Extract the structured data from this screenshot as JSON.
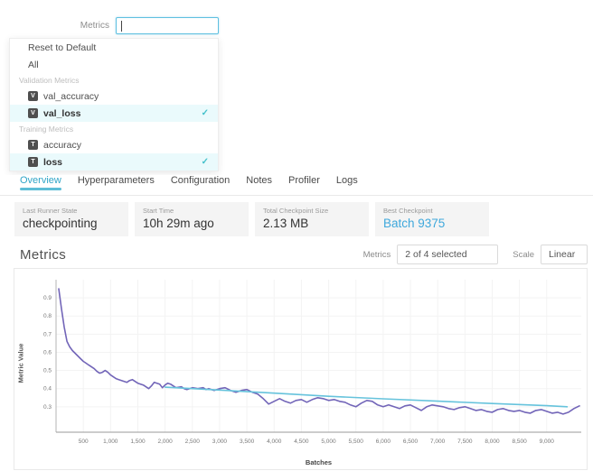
{
  "dropdown": {
    "label": "Metrics",
    "input_value": "",
    "items": [
      {
        "label": "Reset to Default",
        "type": "action"
      },
      {
        "label": "All",
        "type": "action"
      },
      {
        "label": "Validation Metrics",
        "type": "section"
      },
      {
        "label": "val_accuracy",
        "type": "item",
        "badge": "V",
        "selected": false
      },
      {
        "label": "val_loss",
        "type": "item",
        "badge": "V",
        "selected": true
      },
      {
        "label": "Training Metrics",
        "type": "section"
      },
      {
        "label": "accuracy",
        "type": "item",
        "badge": "T",
        "selected": false
      },
      {
        "label": "loss",
        "type": "item",
        "badge": "T",
        "selected": true
      }
    ],
    "check_glyph": "✓"
  },
  "tabs": {
    "items": [
      "Overview",
      "Hyperparameters",
      "Configuration",
      "Notes",
      "Profiler",
      "Logs"
    ],
    "active": "Overview"
  },
  "cards": [
    {
      "label": "Last Runner State",
      "value": "checkpointing",
      "link": false
    },
    {
      "label": "Start Time",
      "value": "10h 29m ago",
      "link": false
    },
    {
      "label": "Total Checkpoint Size",
      "value": "2.13 MB",
      "link": false
    },
    {
      "label": "Best Checkpoint",
      "value": "Batch 9375",
      "link": true
    }
  ],
  "metrics_section": {
    "title": "Metrics",
    "selector_label": "Metrics",
    "selector_value": "2 of 4 selected",
    "scale_label": "Scale",
    "scale_value": "Linear"
  },
  "colors": {
    "accent_teal": "#2fa4c7",
    "link_blue": "#3fa8dc",
    "check_teal": "#45c1cb",
    "grid": "#f3f3f3",
    "axis": "#b5b5b5",
    "tick_text": "#777777"
  },
  "chart_data": {
    "type": "line",
    "title": "Metrics",
    "xlabel": "Batches",
    "ylabel": "Metric Value",
    "xlim": [
      0,
      9700
    ],
    "ylim": [
      0.16,
      1.0
    ],
    "grid": true,
    "x_ticks": [
      500,
      1000,
      1500,
      2000,
      2500,
      3000,
      3500,
      4000,
      4500,
      5000,
      5500,
      6000,
      6500,
      7000,
      7500,
      8000,
      8500,
      9000
    ],
    "x_tick_labels": [
      "500",
      "1,000",
      "1,500",
      "2,000",
      "2,500",
      "3,000",
      "3,500",
      "4,000",
      "4,500",
      "5,000",
      "5,500",
      "6,000",
      "6,500",
      "7,000",
      "7,500",
      "8,000",
      "8,500",
      "9,000"
    ],
    "y_ticks": [
      0.3,
      0.4,
      0.5,
      0.6,
      0.7,
      0.8,
      0.9
    ],
    "series": [
      {
        "name": "loss",
        "color": "#7265b8",
        "x": [
          50,
          100,
          150,
          200,
          250,
          300,
          350,
          400,
          450,
          500,
          550,
          600,
          650,
          700,
          750,
          800,
          850,
          900,
          950,
          1000,
          1050,
          1100,
          1150,
          1200,
          1250,
          1300,
          1350,
          1400,
          1450,
          1500,
          1600,
          1700,
          1750,
          1800,
          1900,
          1950,
          2000,
          2050,
          2100,
          2200,
          2300,
          2350,
          2400,
          2500,
          2600,
          2700,
          2750,
          2800,
          2900,
          3000,
          3100,
          3200,
          3300,
          3400,
          3500,
          3600,
          3700,
          3800,
          3900,
          4000,
          4100,
          4200,
          4300,
          4400,
          4500,
          4600,
          4700,
          4800,
          4900,
          5000,
          5100,
          5200,
          5300,
          5400,
          5500,
          5600,
          5700,
          5800,
          5900,
          6000,
          6100,
          6200,
          6300,
          6400,
          6500,
          6600,
          6700,
          6800,
          6900,
          7000,
          7100,
          7200,
          7300,
          7400,
          7500,
          7600,
          7700,
          7800,
          7900,
          8000,
          8100,
          8200,
          8300,
          8400,
          8500,
          8600,
          8700,
          8800,
          8900,
          9000,
          9100,
          9200,
          9300,
          9400,
          9500,
          9600
        ],
        "y": [
          0.95,
          0.84,
          0.74,
          0.66,
          0.63,
          0.61,
          0.595,
          0.58,
          0.565,
          0.55,
          0.54,
          0.53,
          0.52,
          0.51,
          0.495,
          0.485,
          0.49,
          0.5,
          0.49,
          0.475,
          0.465,
          0.455,
          0.45,
          0.445,
          0.44,
          0.435,
          0.445,
          0.45,
          0.44,
          0.43,
          0.42,
          0.4,
          0.415,
          0.435,
          0.425,
          0.405,
          0.42,
          0.43,
          0.425,
          0.405,
          0.41,
          0.4,
          0.395,
          0.405,
          0.4,
          0.405,
          0.395,
          0.4,
          0.39,
          0.4,
          0.405,
          0.39,
          0.38,
          0.39,
          0.395,
          0.38,
          0.37,
          0.345,
          0.315,
          0.33,
          0.345,
          0.33,
          0.32,
          0.335,
          0.34,
          0.325,
          0.34,
          0.35,
          0.345,
          0.335,
          0.34,
          0.33,
          0.325,
          0.31,
          0.3,
          0.32,
          0.335,
          0.33,
          0.31,
          0.3,
          0.31,
          0.3,
          0.29,
          0.305,
          0.31,
          0.295,
          0.28,
          0.3,
          0.31,
          0.305,
          0.3,
          0.29,
          0.285,
          0.295,
          0.3,
          0.29,
          0.28,
          0.285,
          0.275,
          0.27,
          0.285,
          0.29,
          0.28,
          0.275,
          0.28,
          0.27,
          0.265,
          0.28,
          0.285,
          0.275,
          0.265,
          0.27,
          0.26,
          0.27,
          0.29,
          0.305
        ]
      },
      {
        "name": "val_loss",
        "color": "#66c3dc",
        "x": [
          2000,
          3000,
          4000,
          5000,
          6000,
          7000,
          8000,
          9000,
          9375
        ],
        "y": [
          0.408,
          0.392,
          0.375,
          0.358,
          0.344,
          0.331,
          0.318,
          0.306,
          0.3
        ]
      }
    ]
  }
}
